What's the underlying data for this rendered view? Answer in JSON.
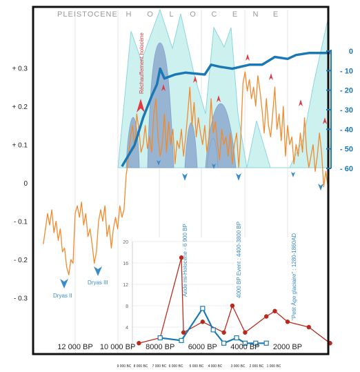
{
  "header": {
    "era_pleistocene": "PLEISTOCENE",
    "era_holocene_letters": [
      "H",
      "O",
      "L",
      "O",
      "C",
      "E",
      "N",
      "E"
    ]
  },
  "annotations": {
    "rechauffement": "Réchauffement holocène",
    "dryas2": "Dryas II",
    "dryas3": "Dryas III",
    "aride": "Aride mi-Holocène - 6 900 BP",
    "event4000": "4000 BP Event : 4400-3800 BP",
    "petit_age": "\"Petit Âge glaciaire\" : 1280-1860AD"
  },
  "colors": {
    "orange": "#f28a2c",
    "blue": "#1a78b4",
    "cyan_fill": "#c8f0ee",
    "cyan_stroke": "#7fd2dc",
    "purple_fill": "#8aa6cc",
    "red": "#b92a1c",
    "red_marker": "#e0393e",
    "frame": "#111111"
  },
  "chart_data": [
    {
      "type": "line",
      "id": "temperature_anomaly",
      "x_axis": {
        "labels": [
          "12 000 BP",
          "10 000 BP",
          "8000 BP",
          "6000 BP",
          "4000 BP",
          "2000 BP"
        ]
      },
      "bc_axis": {
        "labels": [
          "9 000 BC",
          "8 000 BC",
          "7 000 BC",
          "6 000 BC",
          "5 000 BC",
          "4 000 BC",
          "3 000 BC",
          "2 000 BC",
          "1 000 BC"
        ]
      },
      "left_axis": {
        "ticks": [
          "+ 0.3",
          "+ 0.2",
          "+ 0.1",
          "0",
          "- 0.1",
          "- 0.2",
          "- 0.3"
        ],
        "values": [
          0.3,
          0.2,
          0.1,
          0,
          -0.1,
          -0.2,
          -0.3
        ],
        "ylim": [
          -0.3,
          0.3
        ]
      },
      "series": [
        {
          "color": "#f28a2c",
          "x": [
            13500,
            13400,
            13300,
            13200,
            13100,
            13000,
            12900,
            12800,
            12700,
            12600,
            12500,
            12400,
            12300,
            12200,
            12100,
            12000,
            11900,
            11800,
            11700,
            11600,
            11500,
            11400,
            11300,
            11200,
            11100,
            11000,
            10900,
            10800,
            10700,
            10600,
            10500,
            10400,
            10300,
            10200,
            10100,
            10000,
            9900,
            9800,
            9700,
            9600,
            9500,
            9400,
            9300,
            9200,
            9100,
            9000,
            8900,
            8800,
            8700,
            8600,
            8500,
            8400,
            8300,
            8200,
            8100,
            8000,
            7900,
            7800,
            7700,
            7600,
            7500,
            7400,
            7300,
            7200,
            7100,
            7000,
            6900,
            6800,
            6700,
            6600,
            6500,
            6400,
            6300,
            6200,
            6100,
            6000,
            5900,
            5800,
            5700,
            5600,
            5500,
            5400,
            5300,
            5200,
            5100,
            5000,
            4900,
            4800,
            4700,
            4600,
            4500,
            4400,
            4300,
            4200,
            4100,
            4000,
            3900,
            3800,
            3700,
            3600,
            3500,
            3400,
            3300,
            3200,
            3100,
            3000,
            2900,
            2800,
            2700,
            2600,
            2500,
            2400,
            2300,
            2200,
            2100,
            2000,
            1900,
            1800,
            1700,
            1600,
            1500,
            1400,
            1300,
            1200,
            1100,
            1000,
            900,
            800,
            700,
            600,
            500,
            400,
            300,
            200,
            100,
            50
          ],
          "y": [
            -0.16,
            -0.12,
            -0.08,
            -0.11,
            -0.07,
            -0.13,
            -0.1,
            -0.15,
            -0.12,
            -0.18,
            -0.17,
            -0.22,
            -0.24,
            -0.2,
            -0.21,
            -0.08,
            -0.06,
            -0.09,
            -0.05,
            -0.11,
            -0.08,
            -0.14,
            -0.12,
            -0.16,
            -0.21,
            -0.18,
            -0.1,
            -0.07,
            -0.1,
            -0.06,
            -0.14,
            -0.11,
            -0.17,
            -0.12,
            -0.09,
            -0.12,
            -0.06,
            -0.09,
            -0.07,
            0.02,
            0.06,
            0.12,
            0.15,
            0.09,
            0.18,
            0.14,
            0.08,
            0.1,
            0.15,
            0.09,
            0.12,
            0.08,
            0.18,
            0.22,
            0.12,
            0.07,
            0.1,
            0.18,
            0.08,
            0.16,
            0.1,
            0.14,
            0.05,
            0.11,
            0.09,
            0.14,
            0.07,
            0.12,
            0.18,
            0.25,
            0.15,
            0.21,
            0.12,
            0.17,
            0.13,
            0.1,
            0.15,
            0.08,
            0.12,
            0.22,
            0.13,
            0.16,
            0.1,
            0.06,
            0.14,
            0.1,
            0.12,
            0.07,
            0.13,
            0.05,
            0.1,
            0.13,
            0.04,
            0.12,
            0.26,
            0.29,
            0.24,
            0.27,
            0.22,
            0.25,
            0.2,
            0.28,
            0.24,
            0.19,
            0.13,
            0.22,
            0.15,
            0.12,
            0.18,
            0.25,
            0.14,
            0.18,
            0.11,
            0.2,
            0.07,
            0.15,
            0.1,
            0.12,
            0.05,
            0.1,
            0.07,
            0.13,
            0.08,
            0.17,
            0.08,
            0.04,
            0.07,
            0.1,
            0.03,
            0.07,
            0.13,
            0.08,
            -0.01,
            0.03,
            -0.01,
            0.1
          ]
        }
      ],
      "annotations": [
        "Dryas II",
        "Dryas III"
      ]
    },
    {
      "type": "line",
      "id": "holocene_index",
      "right_axis": {
        "ticks": [
          "0",
          "- 10",
          "- 20",
          "- 30",
          "- 40",
          "- 50",
          "- 60"
        ],
        "values": [
          0,
          -10,
          -20,
          -30,
          -40,
          -50,
          -60
        ],
        "ylim": [
          -60,
          0
        ]
      },
      "series": [
        {
          "color": "#1a78b4",
          "x": [
            9800,
            9200,
            8800,
            8400,
            8150,
            8000,
            7800,
            7300,
            6800,
            5900,
            5600,
            5200,
            4600,
            3800,
            3200,
            2600,
            2000,
            1600,
            1000,
            400,
            0
          ],
          "y": [
            -59,
            -48,
            -34,
            -23,
            -17,
            -9,
            -14,
            -12,
            -11,
            -12,
            -7,
            -8,
            -9,
            -7,
            -7,
            -3,
            -4,
            -2,
            -1,
            -1,
            -1
          ]
        }
      ]
    },
    {
      "type": "area",
      "id": "background_bands",
      "series": [
        {
          "color": "#c8f0ee",
          "x": [
            10000,
            9200,
            8600,
            8000,
            7500,
            7000,
            6200,
            5200,
            4400,
            3500,
            2600,
            1000,
            0
          ],
          "y": [
            0,
            0.8,
            0.65,
            1.0,
            0.78,
            0.95,
            0.35,
            0.55,
            0.25,
            0.5,
            0.2,
            0.1,
            0
          ]
        },
        {
          "color": "#8aa6cc",
          "x": [
            9000,
            8000,
            7000,
            6000,
            5000,
            4000,
            3000,
            2000
          ],
          "y": [
            0.4,
            0.9,
            0.55,
            0.35,
            0.45,
            0.6,
            0.3,
            0.2
          ]
        }
      ]
    },
    {
      "type": "line",
      "id": "inset_counts",
      "y_axis": {
        "ticks": [
          "4",
          "8",
          "12",
          "16",
          "20"
        ],
        "values": [
          4,
          8,
          12,
          16,
          20
        ],
        "ylim": [
          0,
          20
        ]
      },
      "series": [
        {
          "color": "#b92a1c",
          "x": [
            9000,
            8000,
            7000,
            6900,
            6000,
            5000,
            4600,
            4000,
            3000,
            2600,
            2000,
            1000,
            0
          ],
          "y": [
            1,
            2,
            17,
            3,
            5,
            3,
            8,
            3,
            6,
            7,
            5,
            4,
            1
          ]
        },
        {
          "color": "#1a78b4",
          "x": [
            8000,
            7000,
            6000,
            5500,
            5000,
            4400,
            4000,
            3500,
            3000
          ],
          "y": [
            2,
            1.5,
            7.5,
            3.5,
            1,
            2,
            1,
            1,
            1
          ]
        }
      ]
    }
  ]
}
